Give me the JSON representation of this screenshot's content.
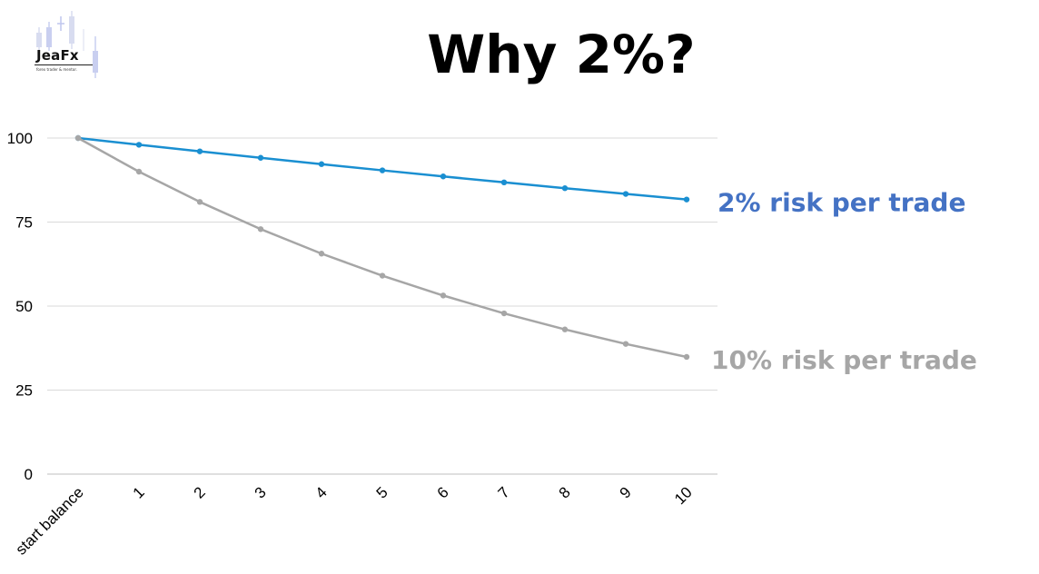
{
  "logo": {
    "name": "JeaFx",
    "tagline": "forex trader & mentor."
  },
  "title": "Why 2%?",
  "chart_data": {
    "type": "line",
    "categories": [
      "start balance",
      "1",
      "2",
      "3",
      "4",
      "5",
      "6",
      "7",
      "8",
      "9",
      "10"
    ],
    "ylim": [
      0,
      100
    ],
    "yticks": [
      "0",
      "25",
      "50",
      "75",
      "100"
    ],
    "grid": true,
    "series": [
      {
        "name": "2% risk per trade",
        "color": "#1a8fd1",
        "label_color": "#4472c4",
        "values": [
          100,
          98,
          96.04,
          94.12,
          92.24,
          90.39,
          88.58,
          86.81,
          85.08,
          83.37,
          81.71
        ]
      },
      {
        "name": "10% risk per trade",
        "color": "#a6a6a6",
        "label_color": "#a6a6a6",
        "values": [
          100,
          90,
          81,
          72.9,
          65.61,
          59.05,
          53.14,
          47.83,
          43.05,
          38.74,
          34.87
        ]
      }
    ]
  }
}
